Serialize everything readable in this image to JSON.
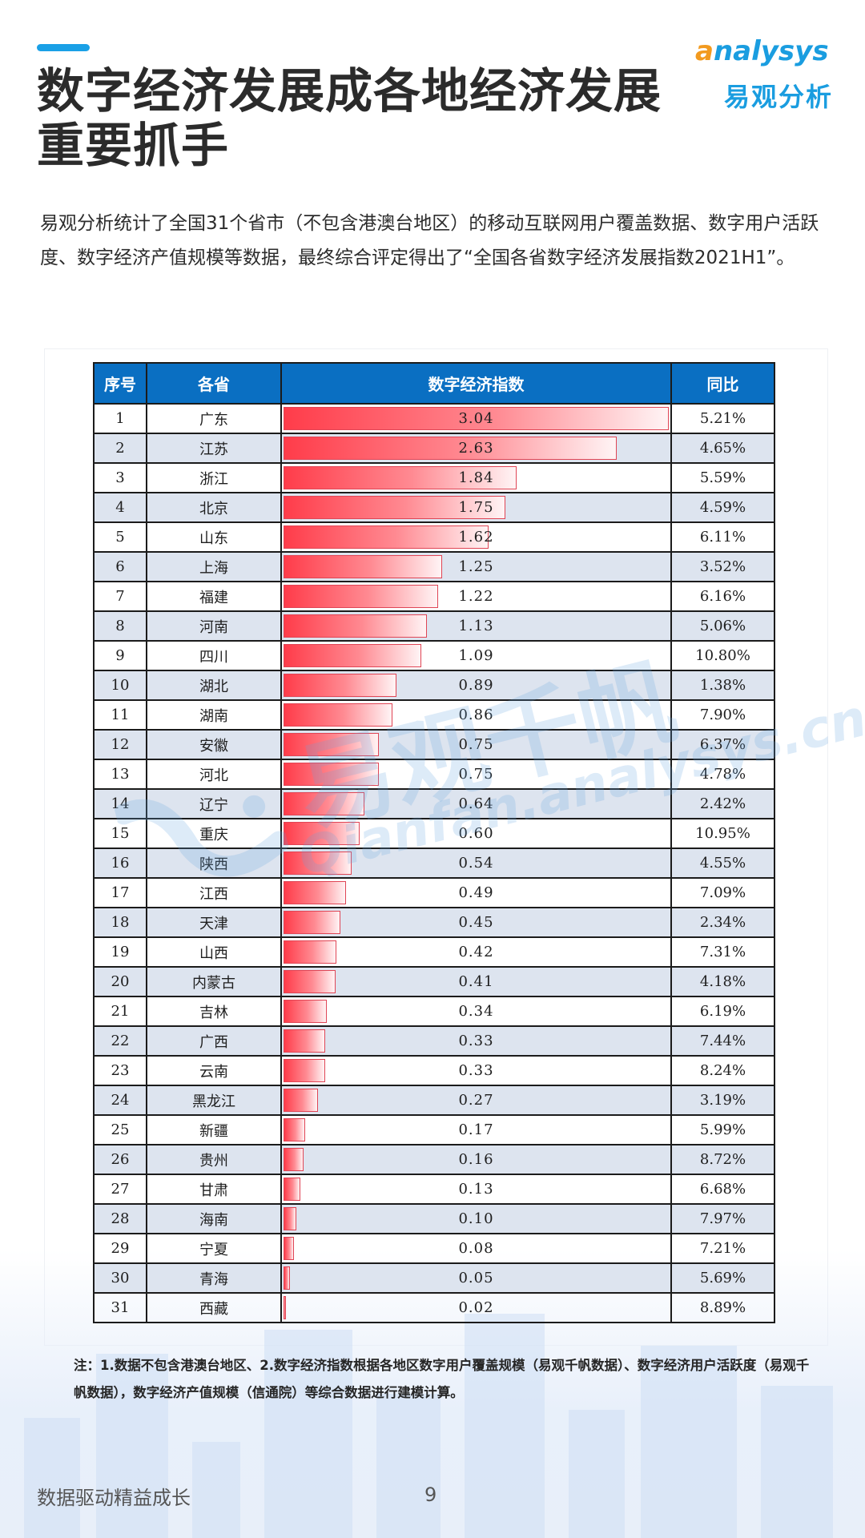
{
  "title_lines": [
    "数字经济发展成各地经济发展",
    "重要抓手"
  ],
  "logo": {
    "en_first": "a",
    "en_rest": "nalysys",
    "cn": "易观分析"
  },
  "intro_text": "易观分析统计了全国31个省市（不包含港澳台地区）的移动互联网用户覆盖数据、数字用户活跃度、数字经济产值规模等数据，最终综合评定得出了“全国各省数字经济发展指数2021H1”。",
  "watermark": {
    "cn": "易观千帆",
    "en": "Qianfan.analysys.cn"
  },
  "table": {
    "headers": {
      "rank": "序号",
      "province": "各省",
      "index": "数字经济指数",
      "yoy": "同比"
    },
    "max_index": 3.04,
    "rows": [
      {
        "rank": "1",
        "province": "广东",
        "index": 3.04,
        "index_label": "3.04",
        "yoy": "5.21%"
      },
      {
        "rank": "2",
        "province": "江苏",
        "index": 2.63,
        "index_label": "2.63",
        "yoy": "4.65%"
      },
      {
        "rank": "3",
        "province": "浙江",
        "index": 1.84,
        "index_label": "1.84",
        "yoy": "5.59%"
      },
      {
        "rank": "4",
        "province": "北京",
        "index": 1.75,
        "index_label": "1.75",
        "yoy": "4.59%"
      },
      {
        "rank": "5",
        "province": "山东",
        "index": 1.62,
        "index_label": "1.62",
        "yoy": "6.11%"
      },
      {
        "rank": "6",
        "province": "上海",
        "index": 1.25,
        "index_label": "1.25",
        "yoy": "3.52%"
      },
      {
        "rank": "7",
        "province": "福建",
        "index": 1.22,
        "index_label": "1.22",
        "yoy": "6.16%"
      },
      {
        "rank": "8",
        "province": "河南",
        "index": 1.13,
        "index_label": "1.13",
        "yoy": "5.06%"
      },
      {
        "rank": "9",
        "province": "四川",
        "index": 1.09,
        "index_label": "1.09",
        "yoy": "10.80%"
      },
      {
        "rank": "10",
        "province": "湖北",
        "index": 0.89,
        "index_label": "0.89",
        "yoy": "1.38%"
      },
      {
        "rank": "11",
        "province": "湖南",
        "index": 0.86,
        "index_label": "0.86",
        "yoy": "7.90%"
      },
      {
        "rank": "12",
        "province": "安徽",
        "index": 0.75,
        "index_label": "0.75",
        "yoy": "6.37%"
      },
      {
        "rank": "13",
        "province": "河北",
        "index": 0.75,
        "index_label": "0.75",
        "yoy": "4.78%"
      },
      {
        "rank": "14",
        "province": "辽宁",
        "index": 0.64,
        "index_label": "0.64",
        "yoy": "2.42%"
      },
      {
        "rank": "15",
        "province": "重庆",
        "index": 0.6,
        "index_label": "0.60",
        "yoy": "10.95%"
      },
      {
        "rank": "16",
        "province": "陕西",
        "index": 0.54,
        "index_label": "0.54",
        "yoy": "4.55%"
      },
      {
        "rank": "17",
        "province": "江西",
        "index": 0.49,
        "index_label": "0.49",
        "yoy": "7.09%"
      },
      {
        "rank": "18",
        "province": "天津",
        "index": 0.45,
        "index_label": "0.45",
        "yoy": "2.34%"
      },
      {
        "rank": "19",
        "province": "山西",
        "index": 0.42,
        "index_label": "0.42",
        "yoy": "7.31%"
      },
      {
        "rank": "20",
        "province": "内蒙古",
        "index": 0.41,
        "index_label": "0.41",
        "yoy": "4.18%"
      },
      {
        "rank": "21",
        "province": "吉林",
        "index": 0.34,
        "index_label": "0.34",
        "yoy": "6.19%"
      },
      {
        "rank": "22",
        "province": "广西",
        "index": 0.33,
        "index_label": "0.33",
        "yoy": "7.44%"
      },
      {
        "rank": "23",
        "province": "云南",
        "index": 0.33,
        "index_label": "0.33",
        "yoy": "8.24%"
      },
      {
        "rank": "24",
        "province": "黑龙江",
        "index": 0.27,
        "index_label": "0.27",
        "yoy": "3.19%"
      },
      {
        "rank": "25",
        "province": "新疆",
        "index": 0.17,
        "index_label": "0.17",
        "yoy": "5.99%"
      },
      {
        "rank": "26",
        "province": "贵州",
        "index": 0.16,
        "index_label": "0.16",
        "yoy": "8.72%"
      },
      {
        "rank": "27",
        "province": "甘肃",
        "index": 0.13,
        "index_label": "0.13",
        "yoy": "6.68%"
      },
      {
        "rank": "28",
        "province": "海南",
        "index": 0.1,
        "index_label": "0.10",
        "yoy": "7.97%"
      },
      {
        "rank": "29",
        "province": "宁夏",
        "index": 0.08,
        "index_label": "0.08",
        "yoy": "7.21%"
      },
      {
        "rank": "30",
        "province": "青海",
        "index": 0.05,
        "index_label": "0.05",
        "yoy": "5.69%"
      },
      {
        "rank": "31",
        "province": "西藏",
        "index": 0.02,
        "index_label": "0.02",
        "yoy": "8.89%"
      }
    ]
  },
  "note": "注：1.数据不包含港澳台地区、2.数字经济指数根据各地区数字用户覆盖规模（易观千帆数据）、数字经济用户活跃度（易观千帆数据），数字经济产值规模（信通院）等综合数据进行建模计算。",
  "footer": {
    "slogan": "数据驱动精益成长",
    "page_number": "9"
  },
  "colors": {
    "accent": "#1aa0e6",
    "header_bg": "#0a6fc2",
    "bar": "#ff3c4a",
    "alt_row": "#dde4ef",
    "logo_orange": "#f29a1f"
  }
}
